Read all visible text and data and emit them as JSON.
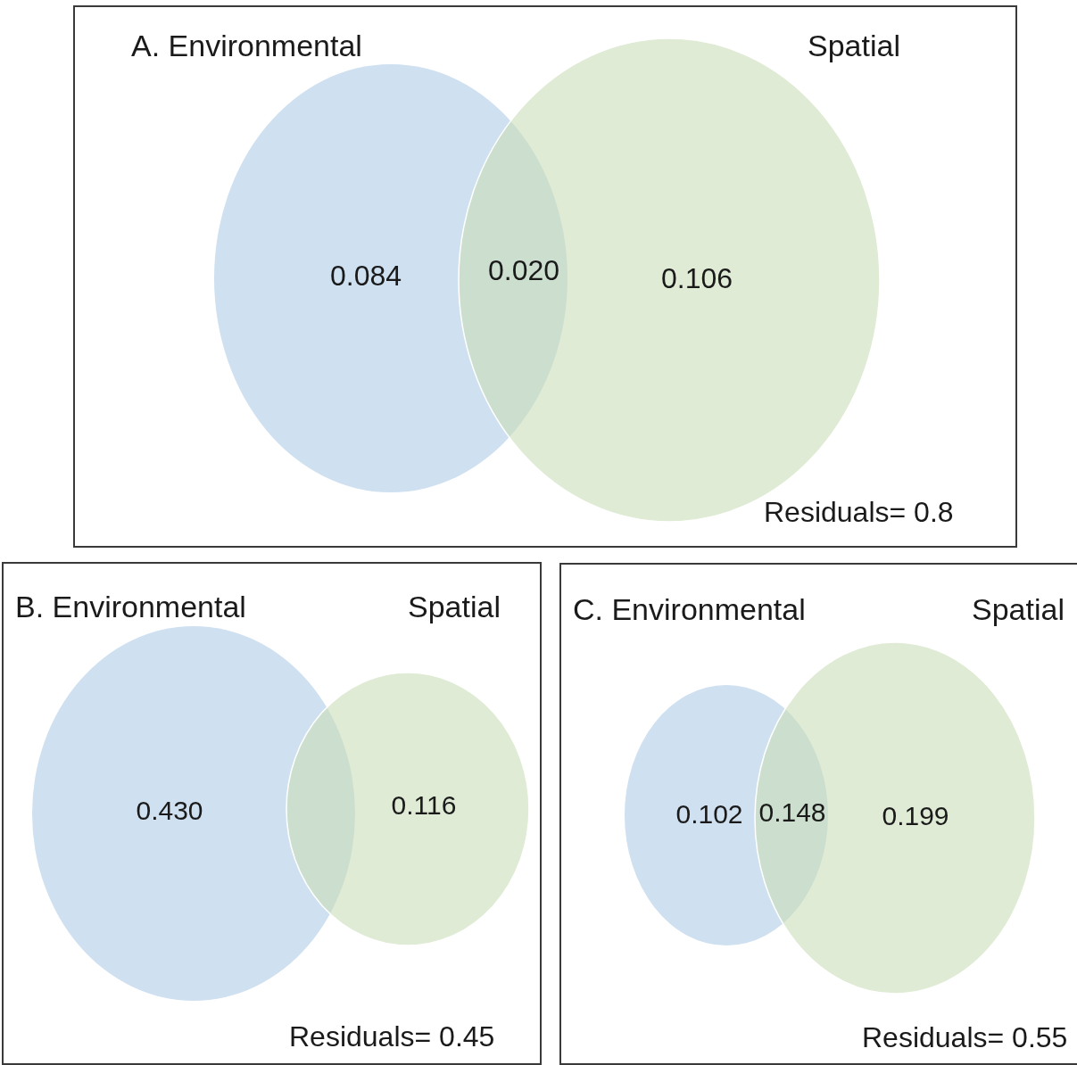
{
  "chart_data": [
    {
      "type": "other",
      "values": [
        0.084,
        0.02,
        0.106
      ],
      "value_labels": [
        "0.084",
        "0.020",
        "0.106"
      ],
      "annotations": [
        "A. Environmental",
        "Spatial",
        "Residuals= 0.8"
      ]
    },
    {
      "type": "other",
      "values": [
        0.43,
        null,
        0.116
      ],
      "value_labels": [
        "0.430",
        null,
        "0.116"
      ],
      "annotations": [
        "B. Environmental",
        "Spatial",
        "Residuals= 0.45"
      ]
    },
    {
      "type": "other",
      "values": [
        0.102,
        0.148,
        0.199
      ],
      "value_labels": [
        "0.102",
        "0.148",
        "0.199"
      ],
      "annotations": [
        "C. Environmental",
        "Spatial",
        "Residuals= 0.55"
      ]
    }
  ]
}
